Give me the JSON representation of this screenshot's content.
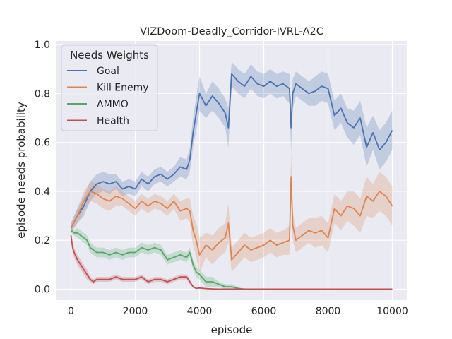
{
  "chart_data": {
    "type": "line",
    "title": "VIZDoom-Deadly_Corridor-IVRL-A2C",
    "xlabel": "episode",
    "ylabel": "episode needs probability",
    "xlim": [
      -450,
      10450
    ],
    "ylim": [
      -0.045,
      1.015
    ],
    "xticks": [
      0,
      2000,
      4000,
      6000,
      8000,
      10000
    ],
    "xtick_labels": [
      "0",
      "2000",
      "4000",
      "6000",
      "8000",
      "10000"
    ],
    "yticks": [
      0.0,
      0.2,
      0.4,
      0.6,
      0.8,
      1.0
    ],
    "ytick_labels": [
      "0.0",
      "0.2",
      "0.4",
      "0.6",
      "0.8",
      "1.0"
    ],
    "grid": true,
    "legend": {
      "title": "Needs Weights",
      "position": "upper-left"
    },
    "series": [
      {
        "name": "Goal",
        "color": "#4c72b0",
        "x": [
          0,
          200,
          400,
          600,
          800,
          1000,
          1200,
          1400,
          1600,
          1800,
          2000,
          2200,
          2400,
          2600,
          2800,
          3000,
          3200,
          3400,
          3600,
          3700,
          3800,
          3900,
          4000,
          4200,
          4400,
          4600,
          4800,
          4900,
          5000,
          5200,
          5400,
          5600,
          5800,
          6000,
          6200,
          6400,
          6600,
          6800,
          6850,
          6900,
          7000,
          7200,
          7400,
          7600,
          7800,
          8000,
          8200,
          8400,
          8600,
          8800,
          9000,
          9200,
          9400,
          9600,
          9800,
          10000
        ],
        "values": [
          0.25,
          0.3,
          0.34,
          0.4,
          0.43,
          0.44,
          0.43,
          0.44,
          0.41,
          0.42,
          0.41,
          0.45,
          0.43,
          0.46,
          0.47,
          0.45,
          0.47,
          0.5,
          0.49,
          0.53,
          0.64,
          0.72,
          0.8,
          0.75,
          0.79,
          0.76,
          0.72,
          0.66,
          0.88,
          0.85,
          0.83,
          0.87,
          0.84,
          0.83,
          0.85,
          0.83,
          0.84,
          0.82,
          0.66,
          0.8,
          0.84,
          0.82,
          0.8,
          0.81,
          0.83,
          0.82,
          0.71,
          0.74,
          0.68,
          0.66,
          0.7,
          0.58,
          0.64,
          0.57,
          0.6,
          0.65
        ],
        "band": [
          0.02,
          0.03,
          0.04,
          0.04,
          0.04,
          0.04,
          0.04,
          0.03,
          0.03,
          0.03,
          0.03,
          0.03,
          0.03,
          0.03,
          0.03,
          0.03,
          0.03,
          0.04,
          0.04,
          0.05,
          0.06,
          0.07,
          0.07,
          0.05,
          0.06,
          0.06,
          0.06,
          0.08,
          0.05,
          0.05,
          0.05,
          0.05,
          0.05,
          0.05,
          0.05,
          0.05,
          0.05,
          0.06,
          0.1,
          0.06,
          0.05,
          0.05,
          0.05,
          0.06,
          0.06,
          0.06,
          0.06,
          0.06,
          0.06,
          0.07,
          0.07,
          0.08,
          0.07,
          0.08,
          0.08,
          0.08
        ]
      },
      {
        "name": "Kill Enemy",
        "color": "#dd8452",
        "x": [
          0,
          200,
          400,
          600,
          800,
          1000,
          1200,
          1400,
          1600,
          1800,
          2000,
          2200,
          2400,
          2600,
          2800,
          3000,
          3200,
          3400,
          3600,
          3700,
          3800,
          3900,
          4000,
          4200,
          4400,
          4600,
          4800,
          4900,
          5000,
          5200,
          5400,
          5600,
          5800,
          6000,
          6200,
          6400,
          6600,
          6800,
          6850,
          6900,
          7000,
          7200,
          7400,
          7600,
          7800,
          8000,
          8200,
          8400,
          8600,
          8800,
          9000,
          9200,
          9400,
          9600,
          9800,
          10000
        ],
        "values": [
          0.25,
          0.3,
          0.36,
          0.4,
          0.39,
          0.37,
          0.36,
          0.38,
          0.37,
          0.35,
          0.33,
          0.36,
          0.34,
          0.36,
          0.35,
          0.33,
          0.36,
          0.32,
          0.33,
          0.32,
          0.24,
          0.2,
          0.14,
          0.18,
          0.16,
          0.19,
          0.21,
          0.27,
          0.12,
          0.15,
          0.18,
          0.16,
          0.17,
          0.18,
          0.2,
          0.18,
          0.19,
          0.2,
          0.46,
          0.26,
          0.2,
          0.22,
          0.24,
          0.23,
          0.24,
          0.21,
          0.33,
          0.3,
          0.34,
          0.33,
          0.3,
          0.38,
          0.36,
          0.4,
          0.38,
          0.34
        ],
        "band": [
          0.02,
          0.03,
          0.04,
          0.04,
          0.04,
          0.04,
          0.04,
          0.04,
          0.03,
          0.03,
          0.03,
          0.03,
          0.03,
          0.03,
          0.03,
          0.03,
          0.03,
          0.04,
          0.04,
          0.05,
          0.06,
          0.07,
          0.07,
          0.05,
          0.06,
          0.06,
          0.06,
          0.08,
          0.05,
          0.05,
          0.05,
          0.05,
          0.05,
          0.05,
          0.05,
          0.05,
          0.05,
          0.06,
          0.1,
          0.06,
          0.05,
          0.05,
          0.05,
          0.06,
          0.06,
          0.06,
          0.06,
          0.06,
          0.06,
          0.07,
          0.07,
          0.08,
          0.07,
          0.08,
          0.08,
          0.08
        ]
      },
      {
        "name": "AMMO",
        "color": "#55a868",
        "x": [
          0,
          100,
          200,
          300,
          400,
          500,
          600,
          700,
          800,
          1000,
          1200,
          1400,
          1600,
          1800,
          2000,
          2200,
          2400,
          2600,
          2800,
          3000,
          3200,
          3400,
          3600,
          3700,
          3800,
          3900,
          4000,
          4200,
          4400,
          4600,
          4800,
          5000,
          5200,
          5400
        ],
        "values": [
          0.24,
          0.23,
          0.23,
          0.22,
          0.21,
          0.2,
          0.17,
          0.16,
          0.15,
          0.15,
          0.14,
          0.15,
          0.14,
          0.15,
          0.15,
          0.17,
          0.16,
          0.17,
          0.16,
          0.12,
          0.13,
          0.14,
          0.13,
          0.15,
          0.1,
          0.07,
          0.06,
          0.03,
          0.03,
          0.02,
          0.01,
          0.01,
          0.003,
          0.0
        ],
        "band": [
          0.01,
          0.01,
          0.02,
          0.02,
          0.02,
          0.02,
          0.02,
          0.02,
          0.02,
          0.02,
          0.02,
          0.02,
          0.02,
          0.02,
          0.02,
          0.02,
          0.02,
          0.02,
          0.02,
          0.02,
          0.02,
          0.02,
          0.02,
          0.02,
          0.02,
          0.02,
          0.02,
          0.02,
          0.02,
          0.01,
          0.01,
          0.01,
          0.005,
          0.0
        ]
      },
      {
        "name": "Health",
        "color": "#c44e52",
        "x": [
          0,
          50,
          100,
          200,
          300,
          400,
          500,
          600,
          700,
          800,
          1000,
          1200,
          1400,
          1600,
          1800,
          2000,
          2200,
          2400,
          2600,
          2800,
          3000,
          3200,
          3400,
          3600,
          3700,
          3800,
          3900,
          4000,
          4200,
          4400,
          4600,
          5000,
          6000,
          7000,
          8000,
          9000,
          10000
        ],
        "values": [
          0.22,
          0.17,
          0.15,
          0.12,
          0.1,
          0.08,
          0.06,
          0.04,
          0.03,
          0.04,
          0.04,
          0.04,
          0.05,
          0.04,
          0.04,
          0.04,
          0.05,
          0.03,
          0.04,
          0.04,
          0.03,
          0.04,
          0.05,
          0.05,
          0.03,
          0.01,
          0.003,
          0.005,
          0.002,
          0.001,
          0.0,
          0.0,
          0.0,
          0.0,
          0.0,
          0.0,
          0.0
        ],
        "band": [
          0.01,
          0.02,
          0.02,
          0.02,
          0.02,
          0.02,
          0.02,
          0.01,
          0.01,
          0.01,
          0.01,
          0.01,
          0.01,
          0.01,
          0.01,
          0.01,
          0.01,
          0.01,
          0.01,
          0.01,
          0.01,
          0.01,
          0.01,
          0.01,
          0.01,
          0.005,
          0.002,
          0.002,
          0.001,
          0.0,
          0.0,
          0.0,
          0.0,
          0.0,
          0.0,
          0.0,
          0.0
        ]
      }
    ]
  }
}
